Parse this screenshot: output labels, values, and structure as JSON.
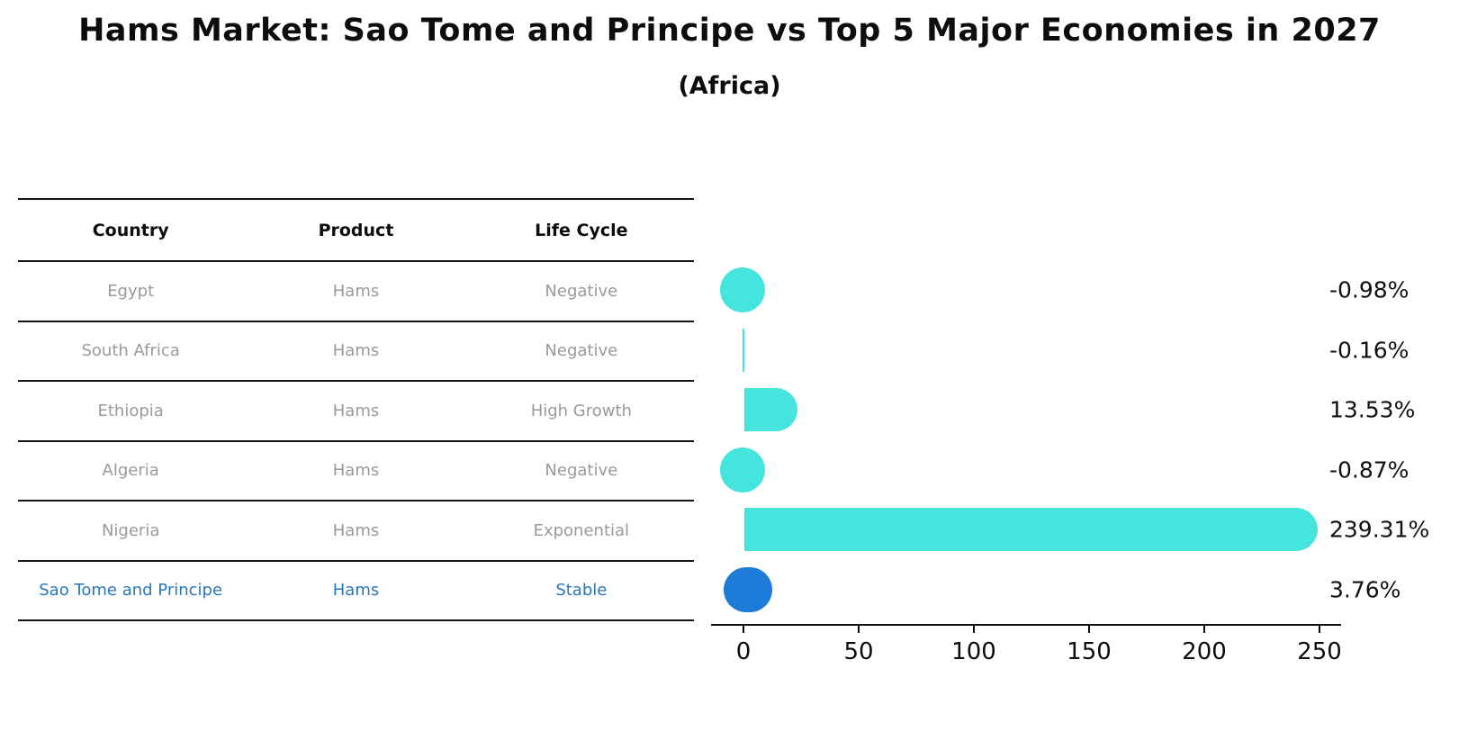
{
  "header": {
    "title": "Hams Market: Sao Tome and Principe vs Top 5 Major Economies in 2027",
    "subtitle": "(Africa)"
  },
  "table": {
    "columns": [
      "Country",
      "Product",
      "Life Cycle"
    ],
    "rows": [
      {
        "country": "Egypt",
        "product": "Hams",
        "life_cycle": "Negative",
        "highlight": false
      },
      {
        "country": "South Africa",
        "product": "Hams",
        "life_cycle": "Negative",
        "highlight": false
      },
      {
        "country": "Ethiopia",
        "product": "Hams",
        "life_cycle": "High Growth",
        "highlight": false
      },
      {
        "country": "Algeria",
        "product": "Hams",
        "life_cycle": "Negative",
        "highlight": false
      },
      {
        "country": "Nigeria",
        "product": "Hams",
        "life_cycle": "Exponential",
        "highlight": false
      },
      {
        "country": "Sao Tome and Principe",
        "product": "Hams",
        "life_cycle": "Stable",
        "highlight": true
      }
    ]
  },
  "chart_data": {
    "type": "bar",
    "orientation": "horizontal",
    "title": "Hams Market: Sao Tome and Principe vs Top 5 Major Economies in 2027 (Africa)",
    "categories": [
      "Egypt",
      "South Africa",
      "Ethiopia",
      "Algeria",
      "Nigeria",
      "Sao Tome and Principe"
    ],
    "values": [
      -0.98,
      -0.16,
      13.53,
      -0.87,
      239.31,
      3.76
    ],
    "value_labels": [
      "-0.98%",
      "-0.16%",
      "13.53%",
      "-0.87%",
      "239.31%",
      "3.76%"
    ],
    "unit": "percent",
    "highlight_category": "Sao Tome and Principe",
    "xticks": [
      0,
      50,
      100,
      150,
      200,
      250
    ],
    "xlim": [
      -14,
      260
    ],
    "grid": false,
    "legend": false,
    "bar_color": "#45e4dc",
    "highlight_color": "#1e7cd9",
    "highlight_text_color": "#2878be"
  }
}
